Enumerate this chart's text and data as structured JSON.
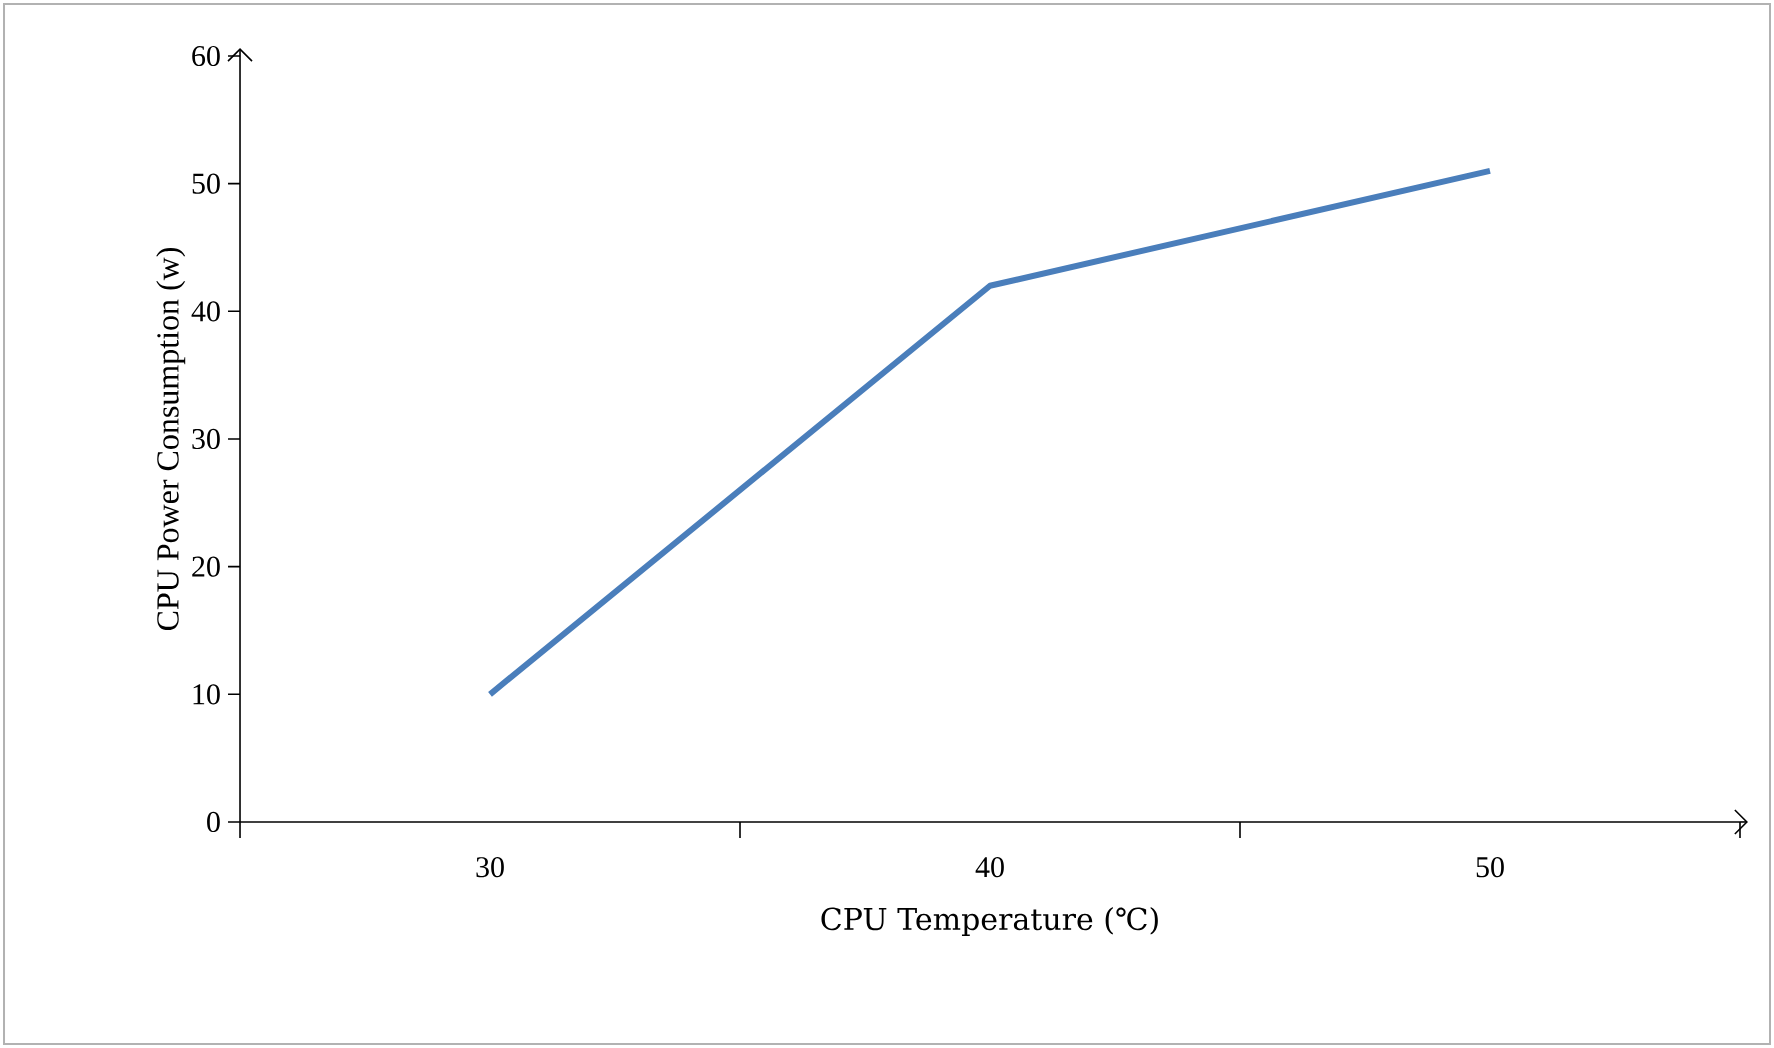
{
  "chart_data": {
    "type": "line",
    "xlabel": "CPU Temperature (℃)",
    "ylabel": "CPU Power Consumption (w)",
    "categories": [
      "30",
      "40",
      "50"
    ],
    "series": [
      {
        "color": "#4a7ebb",
        "values": [
          10,
          42,
          51
        ]
      }
    ],
    "ylim": [
      0,
      60
    ],
    "yticks": [
      0,
      10,
      20,
      30,
      40,
      50,
      60
    ],
    "marker": "none",
    "line_style": "solid"
  }
}
